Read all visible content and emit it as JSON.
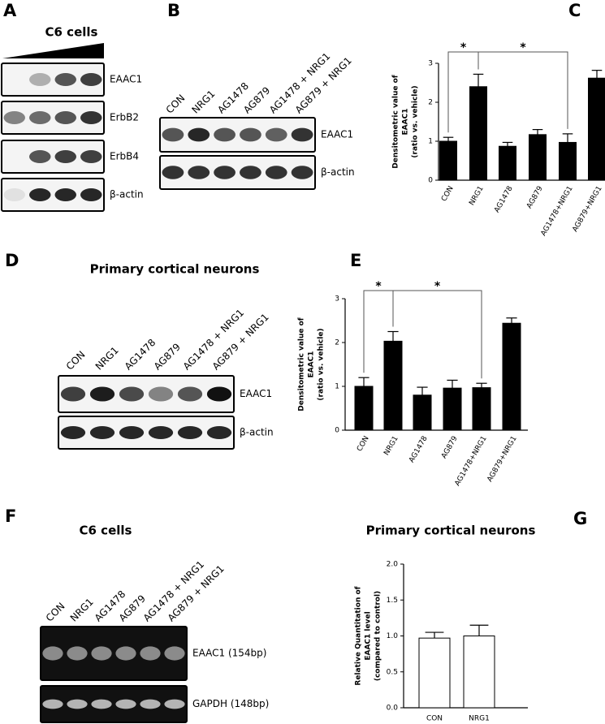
{
  "panels": {
    "A": {
      "letter": "A",
      "title": "C6 cells",
      "blots": [
        "EAAC1",
        "ErbB2",
        "ErbB4",
        "β-actin"
      ]
    },
    "B": {
      "letter": "B",
      "lanes": [
        "CON",
        "NRG1",
        "AG1478",
        "AG879",
        "AG1478 + NRG1",
        "AG879 + NRG1"
      ],
      "blots": [
        "EAAC1",
        "β-actin"
      ]
    },
    "D": {
      "letter": "D",
      "title": "Primary cortical neurons",
      "lanes": [
        "CON",
        "NRG1",
        "AG1478",
        "AG879",
        "AG1478 + NRG1",
        "AG879 + NRG1"
      ],
      "blots": [
        "EAAC1",
        "β-actin"
      ]
    },
    "F": {
      "letter": "F",
      "title": "C6 cells",
      "lanes": [
        "CON",
        "NRG1",
        "AG1478",
        "AG879",
        "AG1478 + NRG1",
        "AG879 + NRG1"
      ],
      "blots": [
        "EAAC1  (154bp)",
        "GAPDH (148bp)"
      ]
    }
  },
  "chart_data": [
    {
      "type": "bar",
      "panel": "C",
      "ylabel": [
        "Densitometric value of",
        "EAAC1",
        "(ratio vs. vehicle)"
      ],
      "categories": [
        "CON",
        "NRG1",
        "AG1478",
        "AG879",
        "AG1478+NRG1",
        "AG879+NRG1"
      ],
      "values": [
        1.0,
        2.4,
        0.87,
        1.17,
        0.97,
        2.62
      ],
      "errors": [
        0.1,
        0.32,
        0.1,
        0.13,
        0.22,
        0.2
      ],
      "ylim": [
        0,
        3
      ],
      "yticks": [
        0,
        1,
        2,
        3
      ],
      "color": "#000000",
      "annotations": [
        "*",
        "*"
      ]
    },
    {
      "type": "bar",
      "panel": "E",
      "ylabel": [
        "Densitometric value of",
        "EAAC1",
        "(ratio vs. vehicle)"
      ],
      "categories": [
        "CON",
        "NRG1",
        "AG1478",
        "AG879",
        "AG1478+NRG1",
        "AG879+NRG1"
      ],
      "values": [
        1.0,
        2.03,
        0.8,
        0.96,
        0.97,
        2.44
      ],
      "errors": [
        0.2,
        0.22,
        0.18,
        0.18,
        0.1,
        0.12
      ],
      "ylim": [
        0,
        3
      ],
      "yticks": [
        0,
        1,
        2,
        3
      ],
      "color": "#000000",
      "annotations": [
        "*",
        "*"
      ]
    },
    {
      "type": "bar",
      "panel": "G",
      "title": "Primary cortical neurons",
      "ylabel": [
        "Relative Quantitation of",
        "EAAC1 level",
        "(compared to control)"
      ],
      "categories": [
        "CON",
        "NRG1"
      ],
      "values": [
        0.97,
        1.0
      ],
      "errors": [
        0.08,
        0.15
      ],
      "ylim": [
        0,
        2
      ],
      "yticks": [
        {
          "value": 0,
          "label": "0.0"
        },
        {
          "value": 0.5,
          "label": "0.5"
        },
        {
          "value": 1,
          "label": "1.0"
        },
        {
          "value": 1.5,
          "label": "1.5"
        },
        {
          "value": 2,
          "label": "2.0"
        }
      ],
      "color": "#ffffff"
    }
  ]
}
